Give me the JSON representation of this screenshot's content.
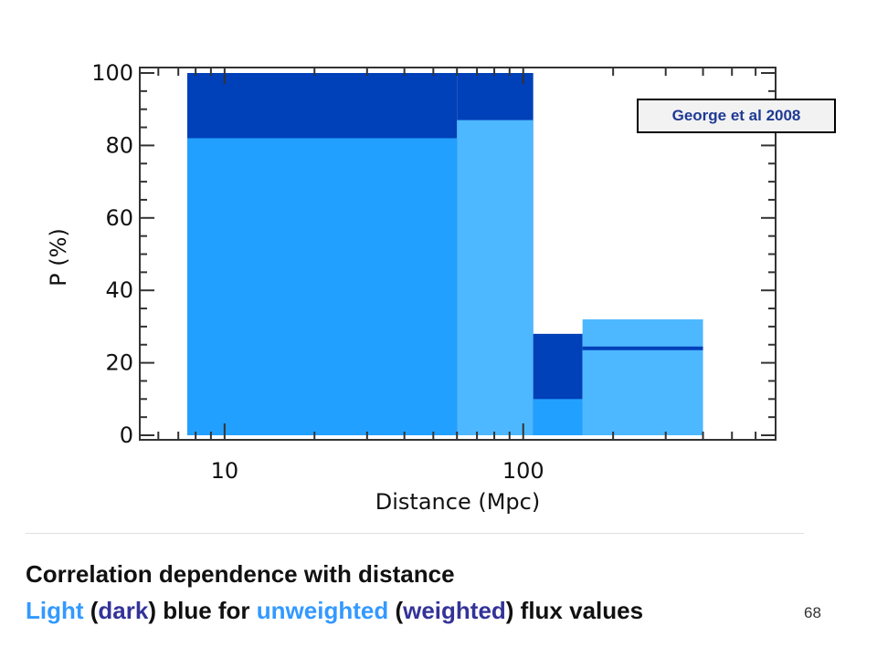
{
  "chart_data": {
    "type": "bar",
    "xlabel": "Distance (Mpc)",
    "ylabel": "P (%)",
    "xscale": "log",
    "xlim": [
      5.2,
      700
    ],
    "ylim": [
      0,
      100
    ],
    "yticks": [
      "0",
      "20",
      "40",
      "60",
      "80",
      "100"
    ],
    "xticks": [
      "10",
      "100"
    ],
    "bins": [
      {
        "x0": 7.5,
        "x1": 60,
        "unweighted": 82,
        "weighted": 100
      },
      {
        "x0": 60,
        "x1": 108,
        "unweighted": 87,
        "weighted": 100
      },
      {
        "x0": 108,
        "x1": 158,
        "unweighted": 10,
        "weighted": 28
      },
      {
        "x0": 158,
        "x1": 400,
        "unweighted": 32,
        "weighted": 24
      }
    ],
    "colors": {
      "light": "#22a0ff",
      "lighter": "#4db8ff",
      "dark": "#0040b8"
    }
  },
  "citation": "George et al 2008",
  "caption": {
    "line1": "Correlation dependence with distance",
    "line2": {
      "light": "Light",
      "p1": " (",
      "dark": "dark",
      "p2": ") blue for ",
      "unweighted": "unweighted",
      "p3": " (",
      "weighted": "weighted",
      "p4": ") flux values"
    }
  },
  "page_number": "68"
}
